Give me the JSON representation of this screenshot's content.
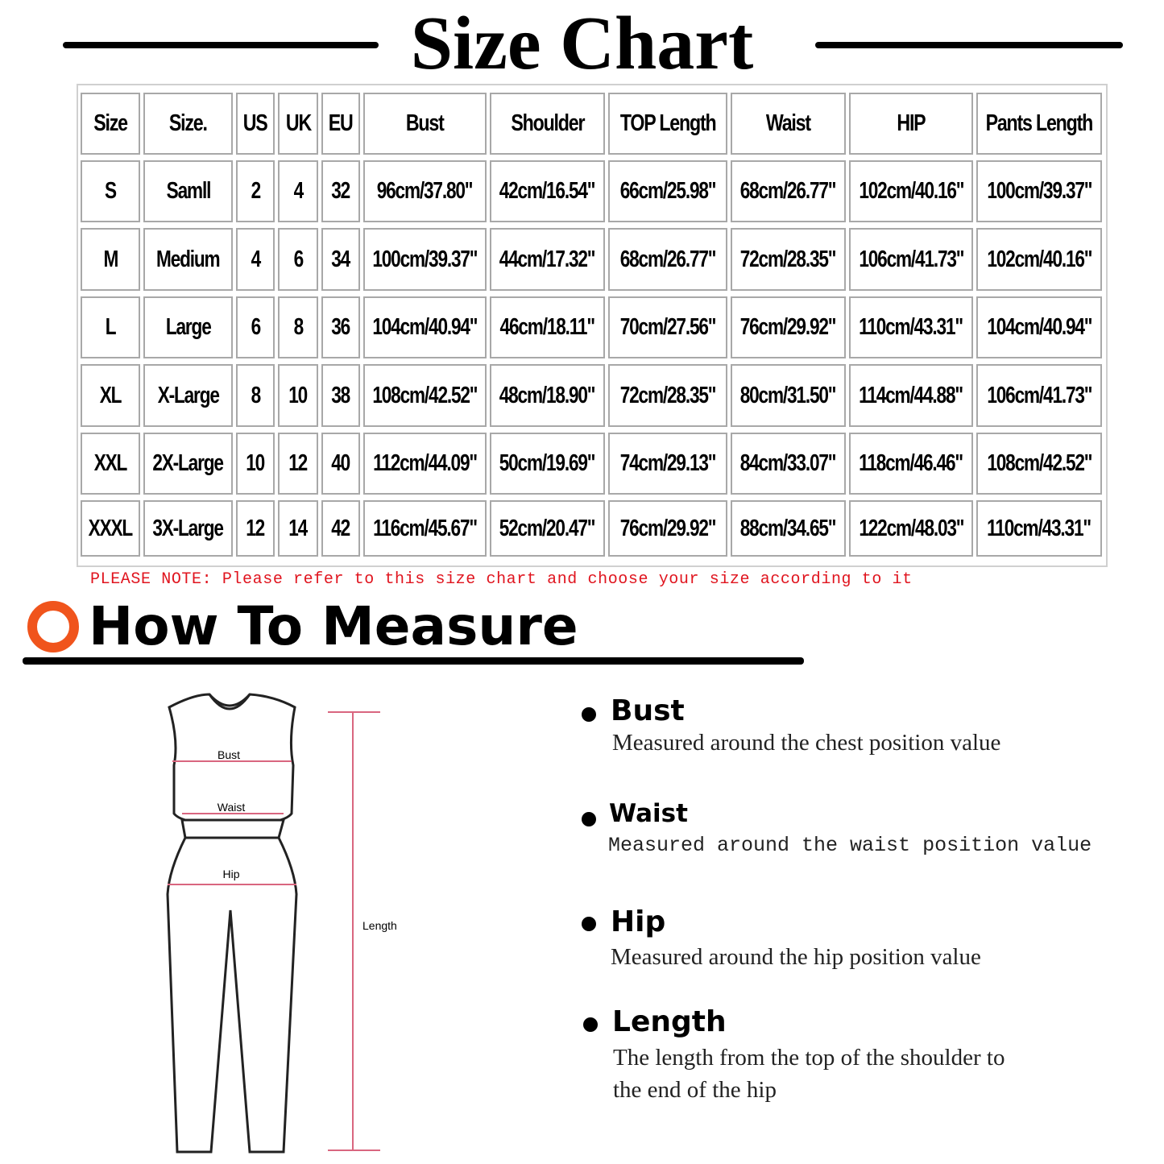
{
  "title": "Size Chart",
  "table": {
    "headers": [
      "Size",
      "Size.",
      "US",
      "UK",
      "EU",
      "Bust",
      "Shoulder",
      "TOP Length",
      "Waist",
      "HIP",
      "Pants Length"
    ],
    "rows": [
      [
        "S",
        "Samll",
        "2",
        "4",
        "32",
        "96cm/37.80\"",
        "42cm/16.54\"",
        "66cm/25.98\"",
        "68cm/26.77\"",
        "102cm/40.16\"",
        "100cm/39.37\""
      ],
      [
        "M",
        "Medium",
        "4",
        "6",
        "34",
        "100cm/39.37\"",
        "44cm/17.32\"",
        "68cm/26.77\"",
        "72cm/28.35\"",
        "106cm/41.73\"",
        "102cm/40.16\""
      ],
      [
        "L",
        "Large",
        "6",
        "8",
        "36",
        "104cm/40.94\"",
        "46cm/18.11\"",
        "70cm/27.56\"",
        "76cm/29.92\"",
        "110cm/43.31\"",
        "104cm/40.94\""
      ],
      [
        "XL",
        "X-Large",
        "8",
        "10",
        "38",
        "108cm/42.52\"",
        "48cm/18.90\"",
        "72cm/28.35\"",
        "80cm/31.50\"",
        "114cm/44.88\"",
        "106cm/41.73\""
      ],
      [
        "XXL",
        "2X-Large",
        "10",
        "12",
        "40",
        "112cm/44.09\"",
        "50cm/19.69\"",
        "74cm/29.13\"",
        "84cm/33.07\"",
        "118cm/46.46\"",
        "108cm/42.52\""
      ],
      [
        "XXXL",
        "3X-Large",
        "12",
        "14",
        "42",
        "116cm/45.67\"",
        "52cm/20.47\"",
        "76cm/29.92\"",
        "88cm/34.65\"",
        "122cm/48.03\"",
        "110cm/43.31\""
      ]
    ]
  },
  "note": "PLEASE NOTE: Please refer to this size chart and choose your size according to it",
  "how_to": {
    "title": "How To Measure",
    "accent_color": "#f0541c",
    "figure_labels": {
      "bust": "Bust",
      "waist": "Waist",
      "hip": "Hip",
      "length": "Length"
    },
    "items": [
      {
        "name": "Bust",
        "desc": "Measured around the chest position value"
      },
      {
        "name": "Waist",
        "desc": "Measured around the waist position value"
      },
      {
        "name": "Hip",
        "desc": "Measured around the  hip position value"
      },
      {
        "name": "Length",
        "desc": "The length from the top of the shoulder to",
        "desc2": "the end of the hip"
      }
    ]
  }
}
